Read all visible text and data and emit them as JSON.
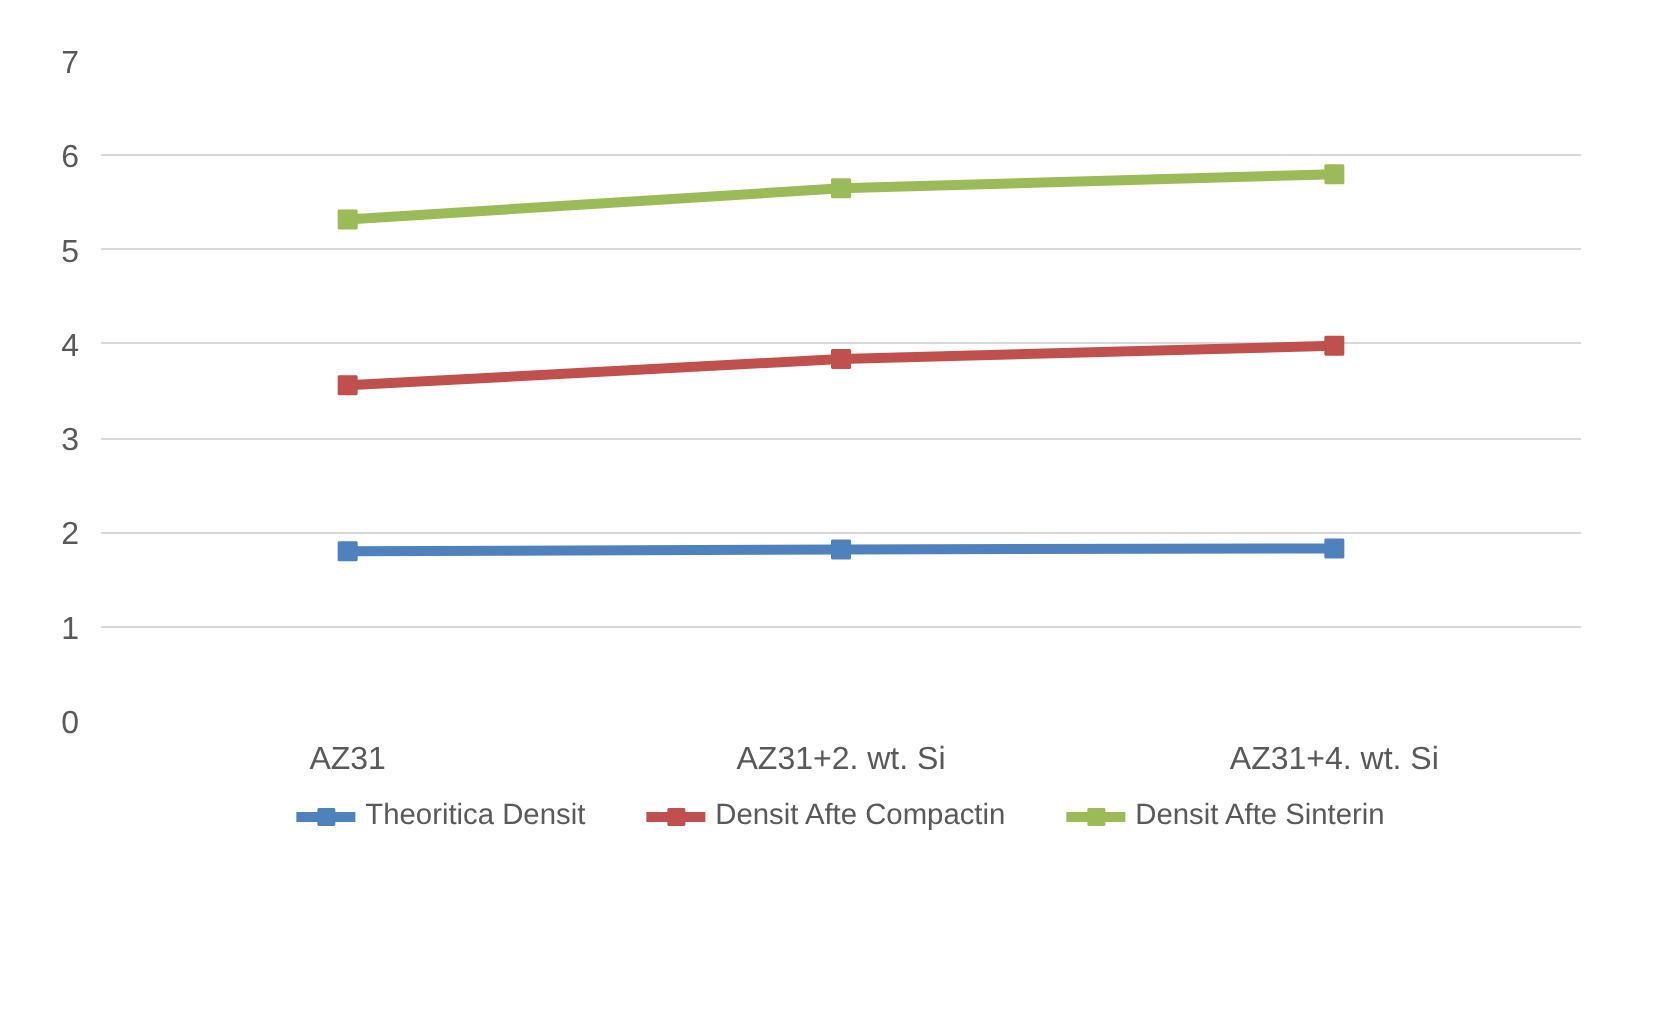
{
  "chart_data": {
    "type": "line",
    "categories": [
      "AZ31",
      "AZ31+2. wt. Si",
      "AZ31+4. wt. Si"
    ],
    "series": [
      {
        "name": "Theoritica Densit",
        "color": "#4f81bd",
        "values": [
          1.8,
          1.82,
          1.83
        ]
      },
      {
        "name": "Densit Afte Compactin",
        "color": "#c0504d",
        "values": [
          3.56,
          3.84,
          3.98
        ]
      },
      {
        "name": "Densit Afte Sinterin",
        "color": "#9bbb59",
        "values": [
          5.32,
          5.65,
          5.8
        ]
      }
    ],
    "ylim": [
      0,
      7
    ],
    "yticks": [
      0,
      1,
      2,
      3,
      4,
      5,
      6,
      7
    ],
    "grid": "y",
    "legend": "bottom",
    "marker": "square",
    "line_style": "solid"
  }
}
